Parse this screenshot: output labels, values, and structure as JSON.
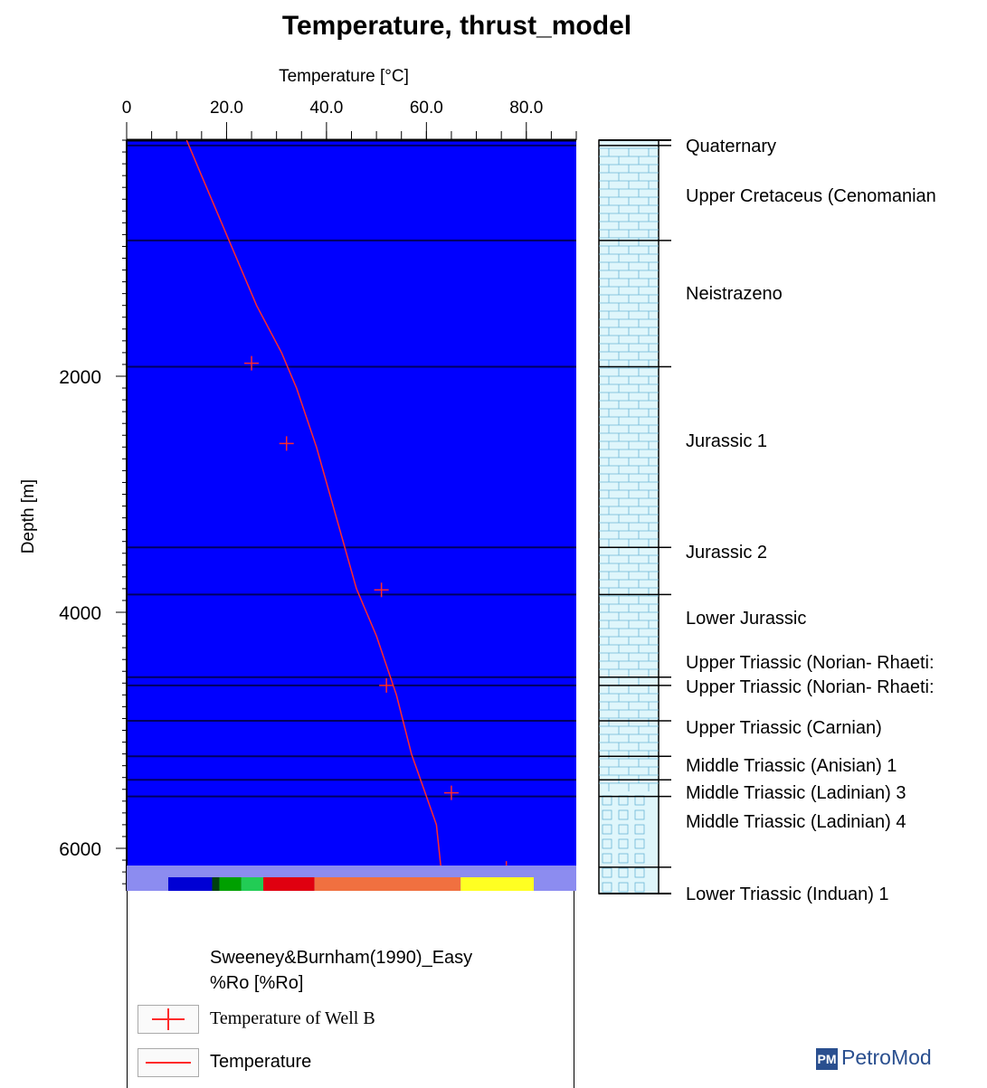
{
  "chart_data": {
    "type": "line",
    "title": "Temperature, thrust_model",
    "xlabel": "Temperature [°C]",
    "ylabel": "Depth [m]",
    "xlim": [
      0,
      90
    ],
    "ylim": [
      6500,
      0
    ],
    "x_ticks": [
      "0",
      "20.0",
      "40.0",
      "60.0",
      "80.0"
    ],
    "y_ticks": [
      "2000",
      "4000",
      "6000"
    ],
    "series": [
      {
        "name": "Temperature",
        "type": "line",
        "color": "#ff2a2a",
        "x": [
          12,
          13,
          15,
          20,
          26,
          31,
          34,
          38,
          42,
          46,
          50,
          54,
          57,
          62,
          63,
          64,
          65
        ],
        "y": [
          0,
          100,
          300,
          800,
          1400,
          1800,
          2100,
          2600,
          3200,
          3800,
          4200,
          4700,
          5200,
          5800,
          6200,
          6350,
          6450
        ]
      },
      {
        "name": "Temperature of Well B",
        "type": "scatter",
        "color": "#ff2a2a",
        "x": [
          25,
          32,
          51,
          52,
          65,
          76
        ],
        "y": [
          1890,
          2570,
          3810,
          4620,
          5530,
          6170
        ]
      }
    ],
    "layers": [
      {
        "name": "Quaternary",
        "top": 0,
        "bottom": 45
      },
      {
        "name": "Upper Cretaceus (Cenomanian",
        "top": 45,
        "bottom": 850
      },
      {
        "name": "Neistrazeno",
        "top": 850,
        "bottom": 1920
      },
      {
        "name": "Jurassic 1",
        "top": 1920,
        "bottom": 3450
      },
      {
        "name": "Jurassic 2",
        "top": 3450,
        "bottom": 3850
      },
      {
        "name": "Lower Jurassic",
        "top": 3850,
        "bottom": 4550
      },
      {
        "name": "Upper Triassic (Norian- Rhaeti:",
        "top": 4550,
        "bottom": 4620
      },
      {
        "name": "Upper Triassic (Norian- Rhaeti:",
        "top": 4620,
        "bottom": 4920
      },
      {
        "name": "Upper Triassic (Carnian)",
        "top": 4920,
        "bottom": 5220
      },
      {
        "name": "Middle Triassic (Anisian) 1",
        "top": 5220,
        "bottom": 5420
      },
      {
        "name": "Middle Triassic (Ladinian)  3",
        "top": 5420,
        "bottom": 5560
      },
      {
        "name": "Middle Triassic (Ladinian)  4",
        "top": 5560,
        "bottom": 6160
      },
      {
        "name": "Lower Triassic (Induan) 1",
        "top": 6160,
        "bottom": 6400
      }
    ],
    "colorbar": {
      "label": "Sweeney&Burnham(1990)_Easy %Ro [%Ro]",
      "min": 0,
      "max": 5,
      "ticks": [
        "0",
        "1.00",
        "2.00",
        "3.00",
        "4.00",
        "5.00"
      ],
      "segments": [
        {
          "from": 0,
          "to": 0.6,
          "color": "#0000d4"
        },
        {
          "from": 0.6,
          "to": 0.7,
          "color": "#004010"
        },
        {
          "from": 0.7,
          "to": 1.0,
          "color": "#00a000"
        },
        {
          "from": 1.0,
          "to": 1.3,
          "color": "#22cc55"
        },
        {
          "from": 1.3,
          "to": 2.0,
          "color": "#e00010"
        },
        {
          "from": 2.0,
          "to": 4.0,
          "color": "#f07040"
        },
        {
          "from": 4.0,
          "to": 5.0,
          "color": "#ffff22"
        }
      ]
    },
    "background_color": "#0000ff",
    "legend_placement": "bottom"
  },
  "legend": {
    "colorbar_label_line1": "Sweeney&Burnham(1990)_Easy",
    "colorbar_label_line2": "%Ro [%Ro]",
    "item1": "Temperature of Well B",
    "item2": "Temperature"
  },
  "brand": {
    "mark": "PM",
    "name": "PetroMod"
  }
}
